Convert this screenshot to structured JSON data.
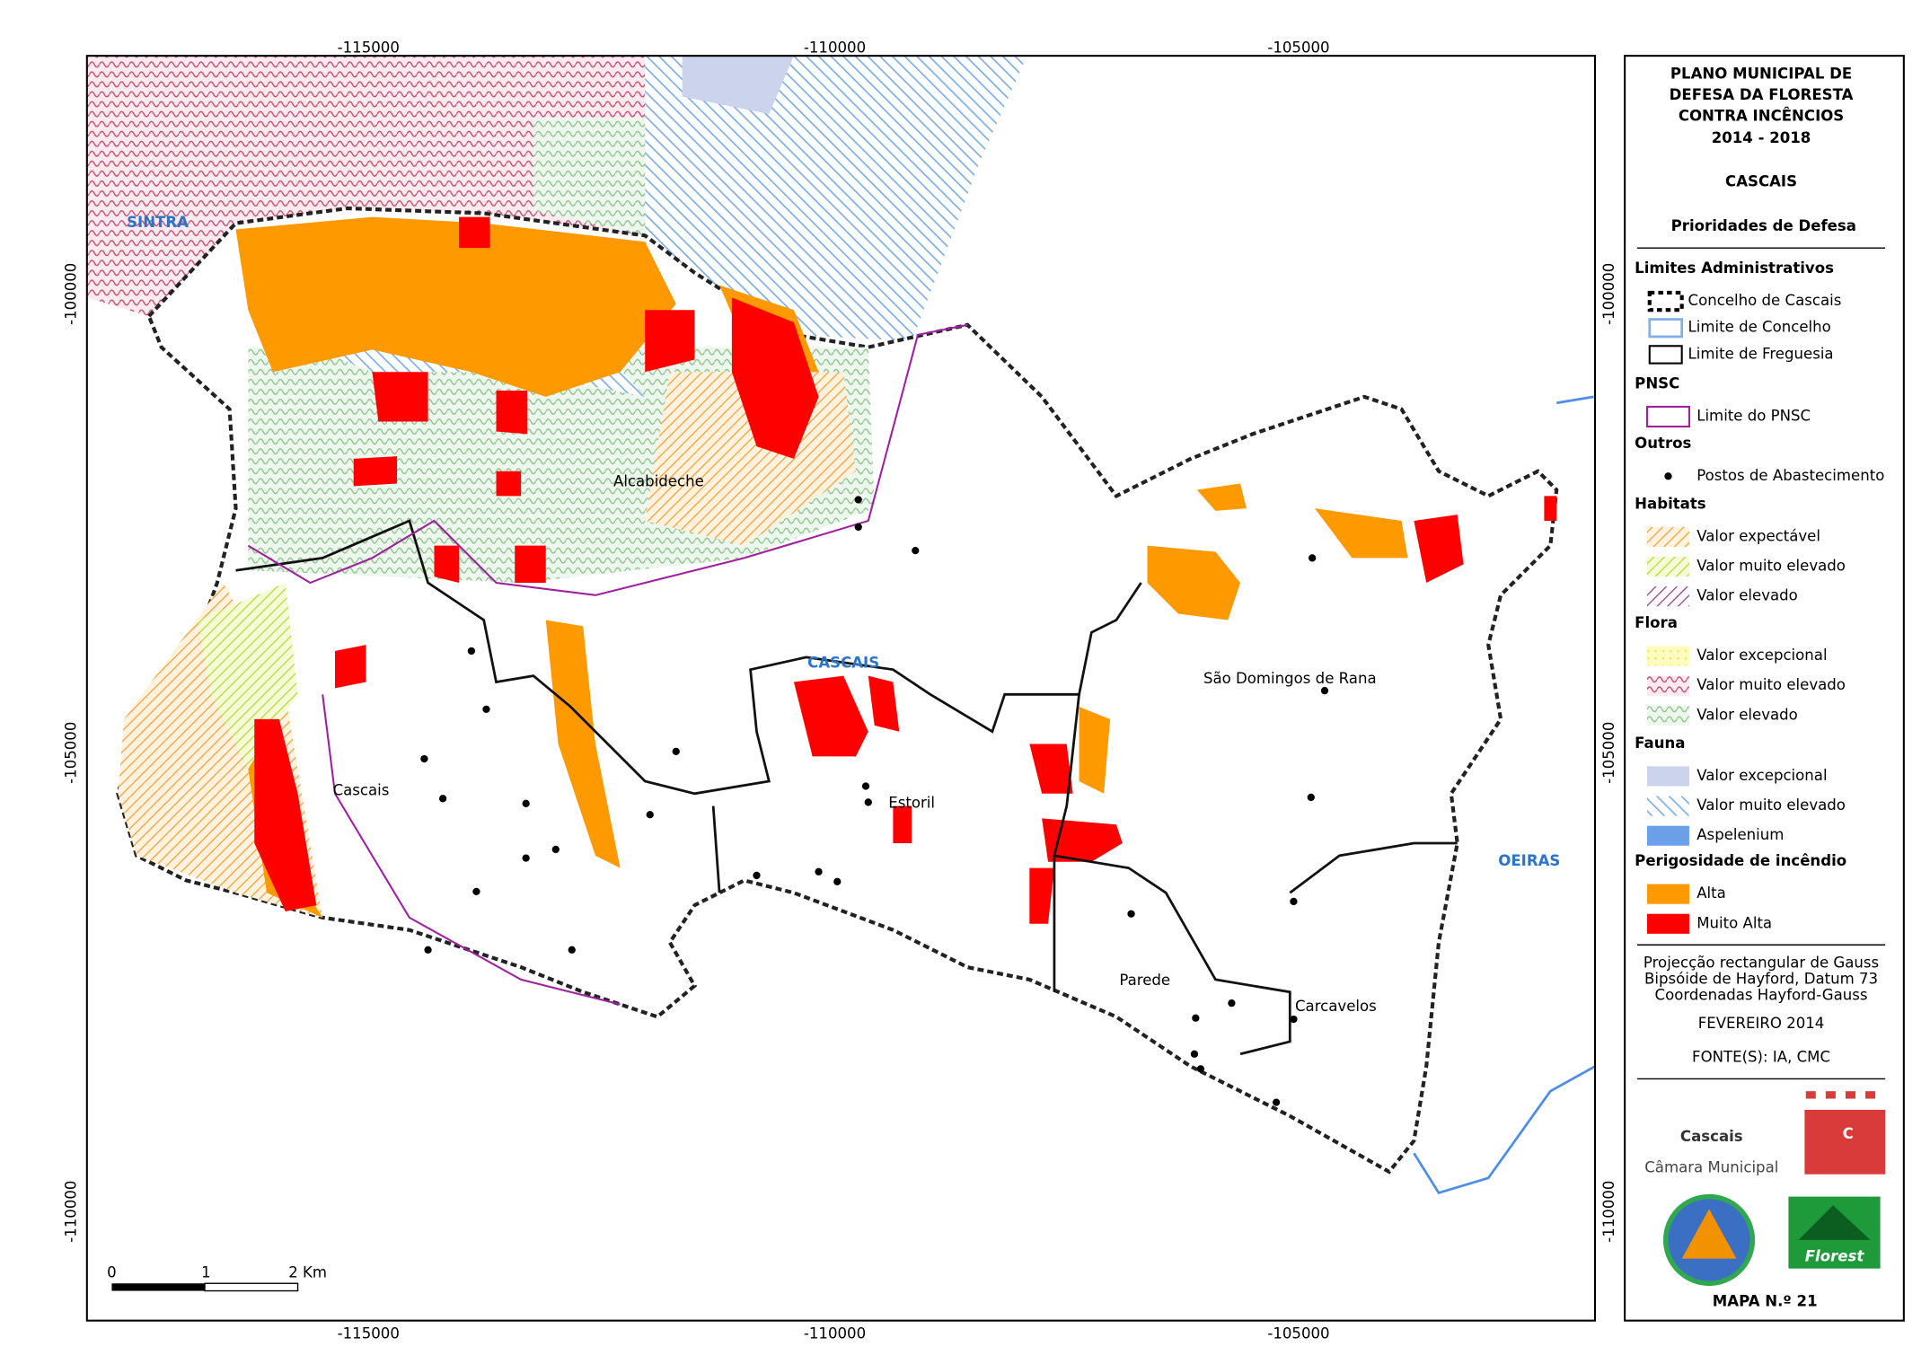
{
  "map": {
    "grid_labels": {
      "top": [
        "-115000",
        "-110000",
        "-105000"
      ],
      "bottom": [
        "-115000",
        "-110000",
        "-105000"
      ],
      "left": [
        "-100000",
        "-105000",
        "-110000"
      ],
      "right": [
        "-100000",
        "-105000",
        "-110000"
      ]
    },
    "places": [
      "SINTRA",
      "Alcabideche",
      "CASCAIS",
      "São Domingos de Rana",
      "Cascais",
      "Estoril",
      "OEIRAS",
      "Parede",
      "Carcavelos"
    ],
    "scale_bar": [
      "0",
      "1",
      "2 Km"
    ]
  },
  "legend": {
    "title": [
      "PLANO MUNICIPAL DE",
      "DEFESA DA FLORESTA",
      "CONTRA INCÊNCIOS",
      "2014 - 2018"
    ],
    "municipality": "CASCAIS",
    "subtitle": "Prioridades de Defesa",
    "sections": [
      {
        "heading": "Limites Administrativos",
        "items": [
          "Concelho de Cascais",
          "Limite de Concelho",
          "Limite de Freguesia"
        ]
      },
      {
        "heading": "PNSC",
        "items": [
          "Limite do PNSC"
        ]
      },
      {
        "heading": "Outros",
        "items": [
          "Postos de Abastecimento"
        ]
      },
      {
        "heading": "Habitats",
        "items": [
          "Valor expectável",
          "Valor muito elevado",
          "Valor elevado"
        ]
      },
      {
        "heading": "Flora",
        "items": [
          "Valor excepcional",
          "Valor muito elevado",
          "Valor elevado"
        ]
      },
      {
        "heading": "Fauna",
        "items": [
          "Valor excepcional",
          "Valor muito elevado",
          "Aspelenium"
        ]
      },
      {
        "heading": "Perigosidade de incêndio",
        "items": [
          "Alta",
          "Muito Alta"
        ]
      }
    ],
    "projection": [
      "Projecção rectangular de Gauss",
      "Bipsóide de Hayford, Datum 73",
      "Coordenadas Hayford-Gauss"
    ],
    "date": "FEVEREIRO 2014",
    "sources": "FONTE(S): IA, CMC",
    "logos": {
      "cascais": "Cascais",
      "camara": "Câmara Municipal",
      "c_mark": "C",
      "florest": "Florest"
    },
    "map_number": "MAPA N.º 21"
  }
}
